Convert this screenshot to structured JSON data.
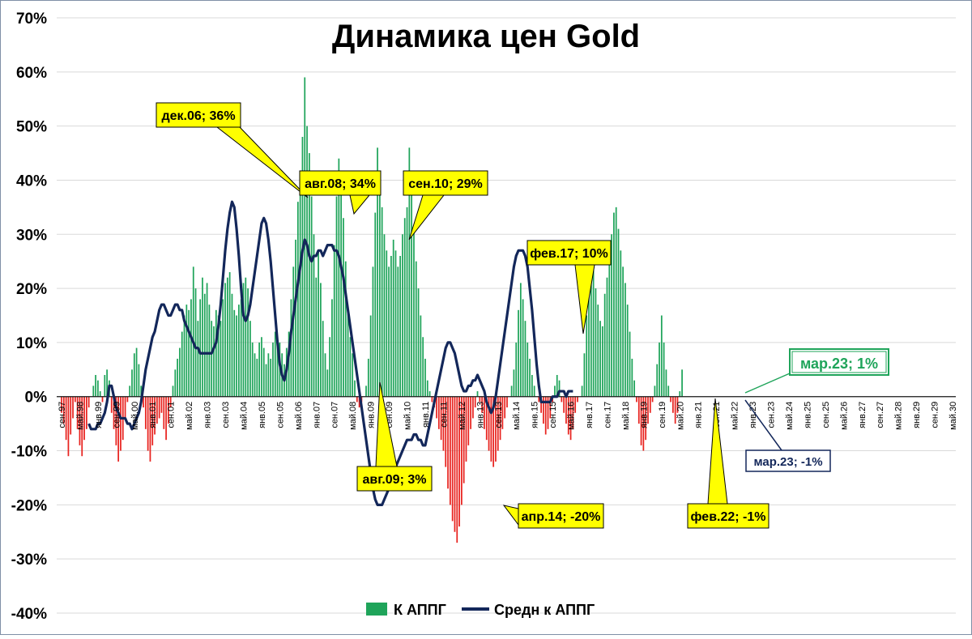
{
  "chart_data": {
    "type": "bar",
    "title": "Динамика цен Gold",
    "ylim": [
      -40,
      70
    ],
    "grid": true,
    "legend_position": "bottom",
    "y_ticks": [
      "70%",
      "60%",
      "50%",
      "40%",
      "30%",
      "20%",
      "10%",
      "0%",
      "-10%",
      "-20%",
      "-30%",
      "-40%"
    ],
    "x_tick_labels": [
      "сен.97",
      "май.98",
      "янв.99",
      "сен.99",
      "май.00",
      "янв.01",
      "сен.01",
      "май.02",
      "янв.03",
      "сен.03",
      "май.04",
      "янв.05",
      "сен.05",
      "май.06",
      "янв.07",
      "сен.07",
      "май.08",
      "янв.09",
      "сен.09",
      "май.10",
      "янв.11",
      "сен.11",
      "май.12",
      "янв.13",
      "сен.13",
      "май.14",
      "янв.15",
      "сен.15",
      "май.16",
      "янв.17",
      "сен.17",
      "май.18",
      "янв.19",
      "сен.19",
      "май.20",
      "янв.21",
      "сен.21",
      "май.22",
      "янв.23",
      "сен.23",
      "май.24",
      "янв.25",
      "сен.25",
      "май.26",
      "янв.27",
      "сен.27",
      "май.28",
      "янв.29",
      "сен.29",
      "май.30"
    ],
    "series": [
      {
        "name": "К АППГ",
        "kind": "bar",
        "color_positive": "#1fa45a",
        "color_negative": "#e8231f",
        "values": [
          -3,
          -5,
          -8,
          -11,
          -7,
          -4,
          -1,
          -6,
          -9,
          -11,
          -8,
          -6,
          -2,
          0,
          2,
          4,
          3,
          1,
          -1,
          4,
          5,
          3,
          -3,
          -6,
          -9,
          -12,
          -10,
          -8,
          -4,
          -1,
          2,
          5,
          8,
          9,
          6,
          2,
          -2,
          -6,
          -10,
          -12,
          -9,
          -7,
          -5,
          -4,
          -3,
          -6,
          -8,
          -5,
          -2,
          2,
          5,
          7,
          9,
          12,
          15,
          17,
          16,
          18,
          24,
          20,
          14,
          18,
          22,
          19,
          21,
          17,
          14,
          13,
          16,
          15,
          14,
          18,
          21,
          22,
          23,
          19,
          16,
          15,
          17,
          18,
          21,
          22,
          20,
          14,
          10,
          8,
          7,
          10,
          11,
          9,
          6,
          8,
          7,
          10,
          12,
          11,
          10,
          8,
          6,
          9,
          12,
          18,
          24,
          29,
          36,
          41,
          48,
          59,
          50,
          45,
          37,
          30,
          22,
          27,
          21,
          14,
          8,
          5,
          11,
          18,
          28,
          37,
          44,
          40,
          33,
          25,
          16,
          11,
          8,
          3,
          -1,
          -2,
          -1,
          0,
          2,
          7,
          15,
          24,
          34,
          46,
          41,
          35,
          30,
          27,
          24,
          26,
          29,
          27,
          24,
          26,
          30,
          33,
          35,
          46,
          38,
          31,
          25,
          20,
          15,
          11,
          7,
          3,
          1,
          -1,
          -2,
          -4,
          -6,
          -8,
          -10,
          -13,
          -17,
          -20,
          -23,
          -25,
          -27,
          -24,
          -20,
          -16,
          -12,
          -9,
          -6,
          -4,
          -2,
          1,
          -1,
          -3,
          -6,
          -8,
          -10,
          -12,
          -13,
          -12,
          -10,
          -8,
          -6,
          -4,
          -2,
          0,
          2,
          5,
          10,
          16,
          21,
          18,
          14,
          10,
          7,
          4,
          2,
          0,
          -1,
          -3,
          -5,
          -7,
          -6,
          -4,
          -1,
          2,
          4,
          3,
          -1,
          -3,
          -5,
          -7,
          -8,
          -6,
          -3,
          -1,
          0,
          2,
          8,
          15,
          22,
          25,
          24,
          20,
          17,
          14,
          13,
          19,
          22,
          25,
          30,
          34,
          35,
          31,
          27,
          24,
          21,
          17,
          12,
          7,
          3,
          -1,
          -5,
          -9,
          -10,
          -8,
          -5,
          -3,
          -1,
          2,
          6,
          10,
          15,
          10,
          5,
          2,
          -1,
          -3,
          -5,
          -3,
          1,
          5
        ]
      },
      {
        "name": "Средн к АППГ",
        "kind": "line",
        "color": "#13275a",
        "values": [
          null,
          null,
          null,
          null,
          null,
          null,
          null,
          null,
          null,
          null,
          null,
          null,
          -5,
          -6,
          -6,
          -6,
          -5,
          -5,
          -4,
          -3,
          -1,
          2,
          2,
          0,
          -2,
          -3,
          -4,
          -4,
          -4,
          -5,
          -5,
          -6,
          -5,
          -4,
          -3,
          -1,
          2,
          5,
          7,
          9,
          11,
          12,
          14,
          16,
          17,
          17,
          16,
          15,
          15,
          16,
          17,
          17,
          16,
          16,
          14,
          13,
          12,
          11,
          10,
          9,
          9,
          8,
          8,
          8,
          8,
          8,
          8,
          9,
          10,
          13,
          17,
          22,
          27,
          31,
          34,
          36,
          35,
          31,
          26,
          20,
          15,
          14,
          15,
          17,
          20,
          23,
          26,
          29,
          32,
          33,
          32,
          29,
          25,
          20,
          15,
          10,
          6,
          4,
          3,
          5,
          8,
          12,
          15,
          18,
          21,
          24,
          27,
          29,
          28,
          26,
          25,
          26,
          26,
          27,
          27,
          26,
          27,
          28,
          28,
          28,
          27,
          27,
          26,
          24,
          22,
          19,
          16,
          13,
          10,
          7,
          4,
          1,
          -2,
          -5,
          -8,
          -11,
          -14,
          -17,
          -19,
          -20,
          -20,
          -20,
          -19,
          -18,
          -17,
          -16,
          -14,
          -13,
          -12,
          -11,
          -10,
          -9,
          -8,
          -8,
          -8,
          -7,
          -7,
          -8,
          -8,
          -9,
          -9,
          -7,
          -5,
          -3,
          -1,
          1,
          3,
          5,
          7,
          9,
          10,
          10,
          9,
          8,
          6,
          4,
          2,
          1,
          1,
          2,
          2,
          3,
          3,
          4,
          3,
          2,
          1,
          -1,
          -2,
          -3,
          -2,
          0,
          3,
          6,
          9,
          12,
          15,
          18,
          21,
          24,
          26,
          27,
          27,
          27,
          26,
          24,
          20,
          16,
          11,
          6,
          2,
          -1,
          -1,
          -1,
          -1,
          -1,
          0,
          0,
          0,
          1,
          1,
          1,
          0,
          1,
          1,
          1
        ]
      }
    ],
    "annotations": [
      {
        "text": "дек.06; 36%",
        "style": "yellow"
      },
      {
        "text": "авг.08; 34%",
        "style": "yellow"
      },
      {
        "text": "сен.10; 29%",
        "style": "yellow"
      },
      {
        "text": "фев.17; 10%",
        "style": "yellow"
      },
      {
        "text": "авг.09; 3%",
        "style": "yellow"
      },
      {
        "text": "апр.14; -20%",
        "style": "yellow"
      },
      {
        "text": "фев.22; -1%",
        "style": "yellow"
      },
      {
        "text": "мар.23; 1%",
        "style": "green"
      },
      {
        "text": "мар.23; -1%",
        "style": "navy"
      }
    ]
  }
}
